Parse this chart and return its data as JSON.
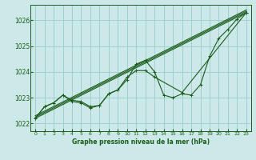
{
  "background_color": "#cce8e8",
  "grid_color": "#99cccc",
  "line_color": "#1a5c1a",
  "title": "Graphe pression niveau de la mer (hPa)",
  "xlim": [
    -0.5,
    23.5
  ],
  "ylim": [
    1021.7,
    1026.6
  ],
  "yticks": [
    1022,
    1023,
    1024,
    1025,
    1026
  ],
  "xticks": [
    0,
    1,
    2,
    3,
    4,
    5,
    6,
    7,
    8,
    9,
    10,
    11,
    12,
    13,
    14,
    15,
    16,
    17,
    18,
    19,
    20,
    21,
    22,
    23
  ],
  "series_main": [
    [
      0,
      1022.2
    ],
    [
      1,
      1022.65
    ],
    [
      2,
      1022.8
    ],
    [
      3,
      1023.1
    ],
    [
      4,
      1022.85
    ],
    [
      5,
      1022.8
    ],
    [
      6,
      1022.6
    ],
    [
      7,
      1022.7
    ],
    [
      8,
      1023.15
    ],
    [
      9,
      1023.3
    ],
    [
      10,
      1023.7
    ],
    [
      11,
      1024.3
    ],
    [
      12,
      1024.45
    ],
    [
      13,
      1024.0
    ],
    [
      14,
      1023.1
    ],
    [
      15,
      1023.0
    ],
    [
      16,
      1023.15
    ],
    [
      17,
      1023.1
    ],
    [
      18,
      1023.5
    ],
    [
      19,
      1024.6
    ],
    [
      20,
      1025.3
    ],
    [
      21,
      1025.65
    ],
    [
      22,
      1026.05
    ],
    [
      23,
      1026.3
    ]
  ],
  "series_straight1": [
    [
      0,
      1022.2
    ],
    [
      23,
      1026.3
    ]
  ],
  "series_straight2": [
    [
      0,
      1022.25
    ],
    [
      23,
      1026.35
    ]
  ],
  "series_straight3": [
    [
      0,
      1022.3
    ],
    [
      23,
      1026.4
    ]
  ],
  "series_curve2": [
    [
      0,
      1022.2
    ],
    [
      1,
      1022.65
    ],
    [
      2,
      1022.8
    ],
    [
      3,
      1023.1
    ],
    [
      4,
      1022.9
    ],
    [
      5,
      1022.85
    ],
    [
      6,
      1022.65
    ],
    [
      7,
      1022.7
    ],
    [
      8,
      1023.15
    ],
    [
      9,
      1023.3
    ],
    [
      10,
      1023.8
    ],
    [
      11,
      1024.05
    ],
    [
      12,
      1024.05
    ],
    [
      13,
      1023.8
    ],
    [
      16,
      1023.2
    ],
    [
      23,
      1026.3
    ]
  ]
}
